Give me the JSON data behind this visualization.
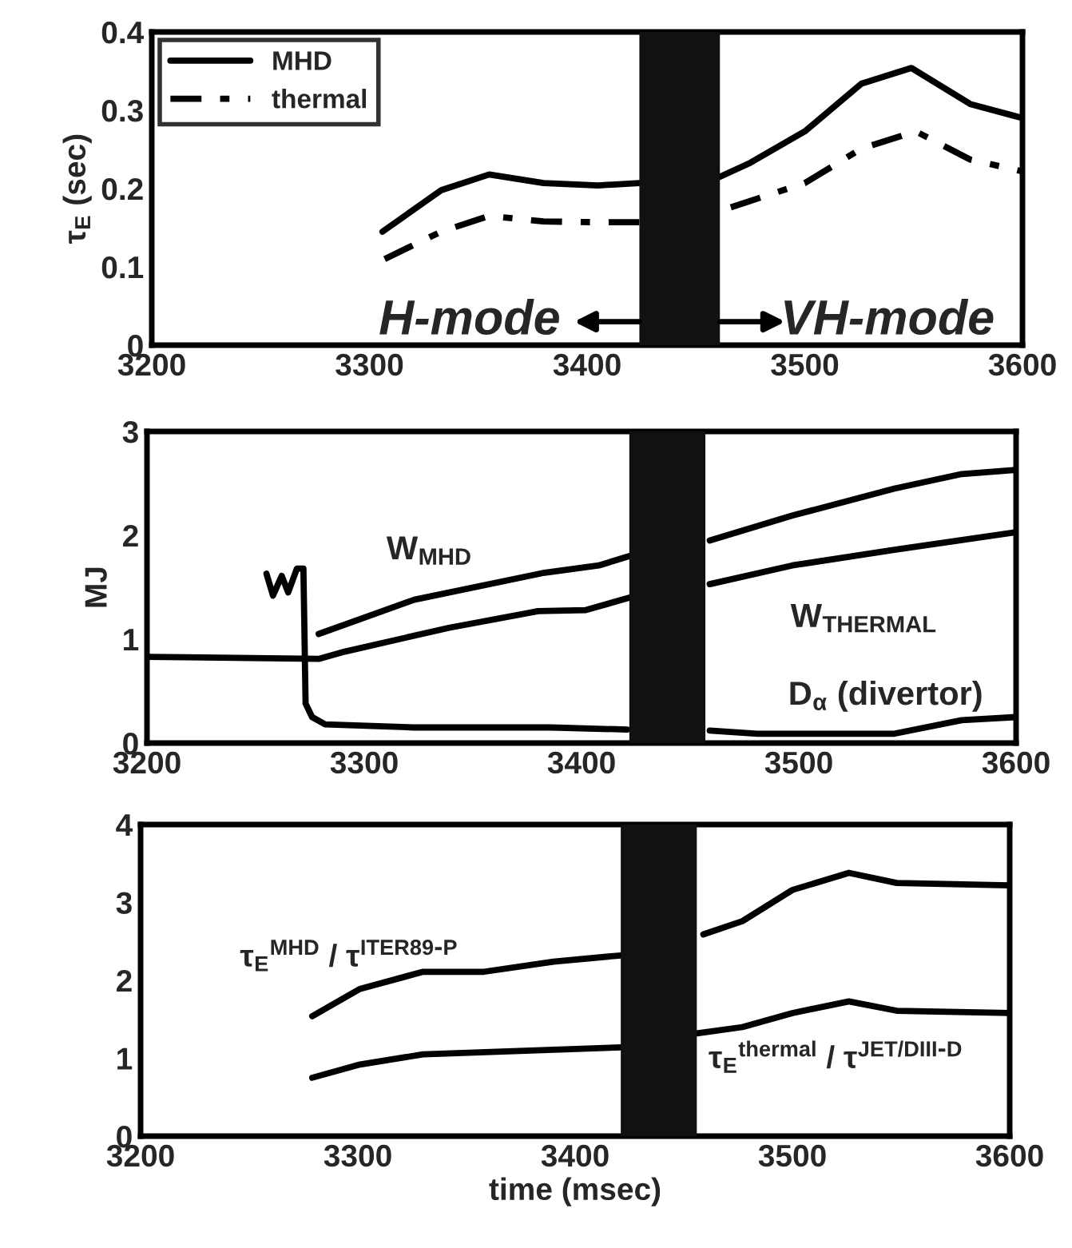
{
  "chart_data": [
    {
      "type": "line",
      "ylabel": "τ$_{E}$ (sec)",
      "xlim": [
        3200,
        3600
      ],
      "xticks": [
        3200,
        3300,
        3400,
        3500,
        3600
      ],
      "ylim": [
        0,
        0.4
      ],
      "yticks": [
        0,
        0.1,
        0.2,
        0.3,
        0.4
      ],
      "grid": false,
      "legend": "top left",
      "marker": "none",
      "series": [
        {
          "name": "MHD",
          "color": "#000000",
          "line_style": "solid",
          "x": [
            3306,
            3333,
            3355,
            3380,
            3405,
            3424,
            3442,
            3461,
            3475,
            3500,
            3526,
            3549,
            3576,
            3600
          ],
          "values": [
            0.145,
            0.198,
            0.218,
            0.207,
            0.204,
            0.207,
            null,
            0.215,
            0.233,
            0.273,
            0.334,
            0.354,
            0.308,
            0.29
          ]
        },
        {
          "name": "thermal",
          "color": "#000000",
          "line_style": "dashed",
          "x": [
            3307,
            3333,
            3355,
            3380,
            3405,
            3424,
            3445,
            3466,
            3500,
            3526,
            3551,
            3576,
            3600
          ],
          "values": [
            0.11,
            0.145,
            0.165,
            0.158,
            0.157,
            0.157,
            null,
            0.176,
            0.207,
            0.251,
            0.273,
            0.237,
            0.222
          ]
        }
      ],
      "bands": [
        {
          "axis": "x",
          "from": 3424,
          "to": 3461,
          "color": "#111111"
        }
      ],
      "annotations": [
        "H-mode",
        "VH-mode"
      ]
    },
    {
      "type": "line",
      "ylabel": "MJ",
      "xlim": [
        3200,
        3600
      ],
      "xticks": [
        3200,
        3300,
        3400,
        3500,
        3600
      ],
      "ylim": [
        0,
        3
      ],
      "yticks": [
        0,
        1,
        2,
        3
      ],
      "grid": false,
      "marker": "none",
      "series": [
        {
          "color": "#000000",
          "line_style": "solid",
          "x": [
            3279,
            3323,
            3383,
            3408,
            3422,
            3440,
            3459,
            3497,
            3544,
            3575,
            3600
          ],
          "values": [
            1.05,
            1.38,
            1.64,
            1.71,
            1.8,
            null,
            1.95,
            2.19,
            2.45,
            2.59,
            2.63
          ]
        },
        {
          "color": "#000000",
          "line_style": "solid",
          "x": [
            3200,
            3279,
            3291,
            3339,
            3380,
            3402,
            3422,
            3440,
            3459,
            3497,
            3544,
            3600
          ],
          "values": [
            0.83,
            0.81,
            0.88,
            1.11,
            1.27,
            1.28,
            1.4,
            null,
            1.53,
            1.71,
            1.86,
            2.03
          ]
        },
        {
          "color": "#000000",
          "line_style": "solid",
          "x": [
            3255,
            3258,
            3262,
            3265,
            3269,
            3272,
            3273,
            3276,
            3282,
            3323,
            3386,
            3421,
            3440,
            3459,
            3481,
            3544,
            3575,
            3600
          ],
          "values": [
            1.63,
            1.42,
            1.61,
            1.45,
            1.68,
            1.68,
            0.38,
            0.25,
            0.18,
            0.15,
            0.15,
            0.13,
            null,
            0.12,
            0.09,
            0.09,
            0.22,
            0.25
          ]
        }
      ],
      "bands": [
        {
          "axis": "x",
          "from": 3422,
          "to": 3457,
          "color": "#111111"
        }
      ],
      "annotations": [
        "W$_{MHD}$",
        "W$_{THERMAL}$",
        "D$_{α}$ (divertor)"
      ]
    },
    {
      "type": "line",
      "xlabel": "time (msec)",
      "xlim": [
        3200,
        3600
      ],
      "xticks": [
        3200,
        3300,
        3400,
        3500,
        3600
      ],
      "ylim": [
        0,
        4
      ],
      "yticks": [
        0,
        1,
        2,
        3,
        4
      ],
      "grid": false,
      "marker": "none",
      "series": [
        {
          "color": "#000000",
          "line_style": "solid",
          "x": [
            3279,
            3301,
            3330,
            3358,
            3390,
            3421,
            3440,
            3459,
            3477,
            3500,
            3526,
            3548,
            3600
          ],
          "values": [
            1.54,
            1.89,
            2.11,
            2.11,
            2.24,
            2.32,
            null,
            2.59,
            2.76,
            3.16,
            3.38,
            3.25,
            3.22
          ]
        },
        {
          "color": "#000000",
          "line_style": "solid",
          "x": [
            3279,
            3301,
            3330,
            3390,
            3421,
            3440,
            3456,
            3477,
            3500,
            3526,
            3548,
            3600
          ],
          "values": [
            0.75,
            0.92,
            1.05,
            1.11,
            1.14,
            null,
            1.32,
            1.4,
            1.58,
            1.73,
            1.61,
            1.58
          ]
        }
      ],
      "bands": [
        {
          "axis": "x",
          "from": 3421,
          "to": 3456,
          "color": "#111111"
        }
      ],
      "annotations": [
        "τ$_{E}$$^{MHD}$ / τ$^{ITER89-P}$",
        "τ$_{E}$$^{thermal}$ / τ$^{JET/DIII-D}$"
      ]
    }
  ]
}
